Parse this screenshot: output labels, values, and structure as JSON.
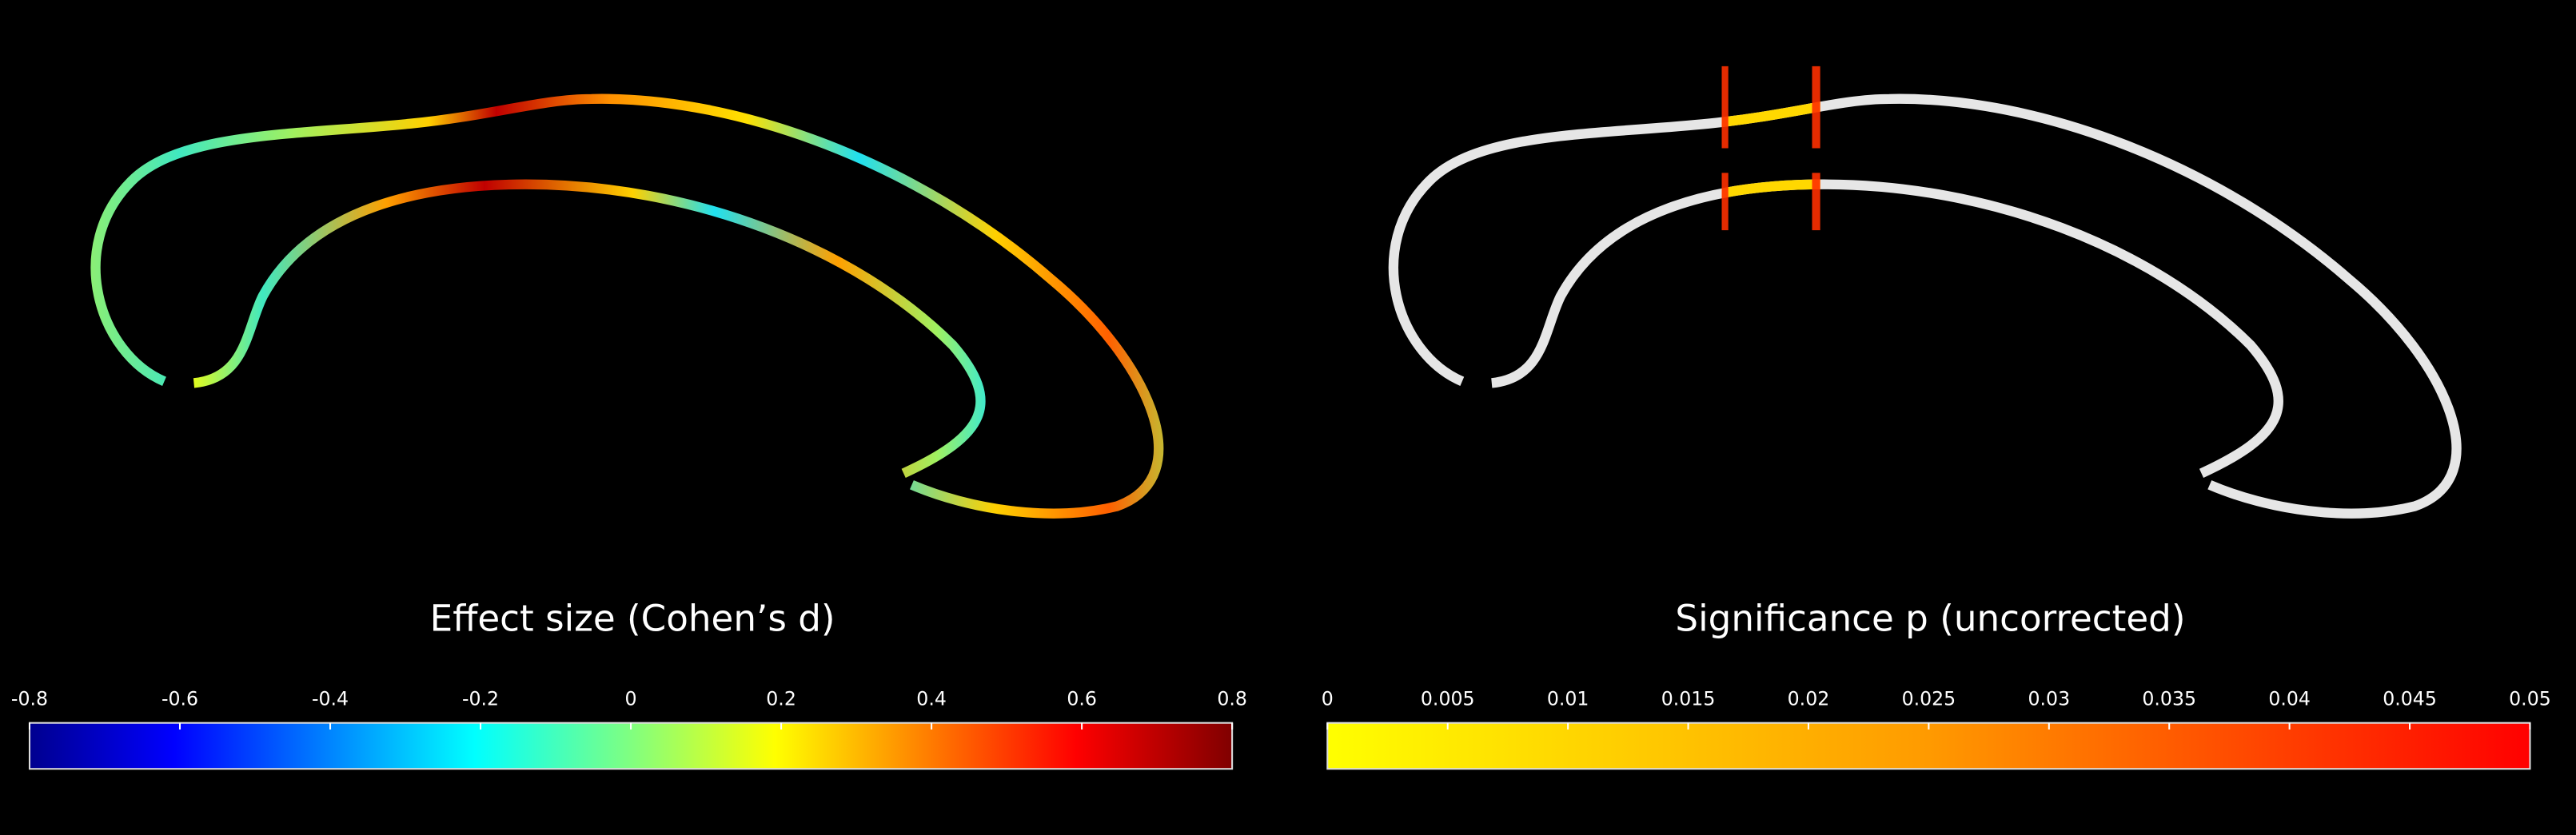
{
  "panels": [
    {
      "title": "Effect size (Cohen’s d)",
      "colorbar": {
        "ticks": [
          -0.8,
          -0.6,
          -0.4,
          -0.2,
          0,
          0.2,
          0.4,
          0.6,
          0.8
        ]
      }
    },
    {
      "title": "Significance p (uncorrected)",
      "colorbar": {
        "ticks": [
          0,
          0.005,
          0.01,
          0.015,
          0.02,
          0.025,
          0.03,
          0.035,
          0.04,
          0.045,
          0.05
        ]
      }
    }
  ]
}
